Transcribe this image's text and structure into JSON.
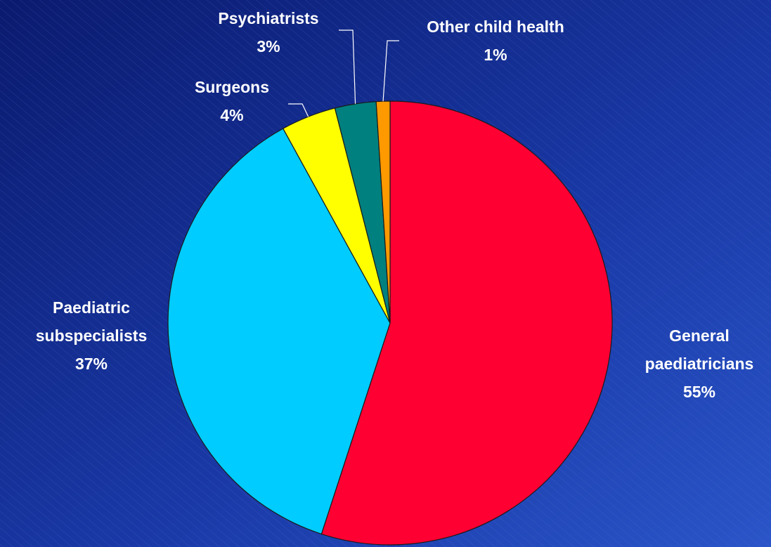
{
  "chart_data": {
    "type": "pie",
    "categories": [
      "General\npaediatricians",
      "Paediatric\nsubspecialists",
      "Surgeons",
      "Psychiatrists",
      "Other child health"
    ],
    "values": [
      55,
      37,
      4,
      3,
      1
    ],
    "value_labels": [
      "55%",
      "37%",
      "4%",
      "3%",
      "1%"
    ],
    "colors": [
      "#ff0033",
      "#00ccff",
      "#ffff00",
      "#00807f",
      "#ff9900"
    ]
  }
}
